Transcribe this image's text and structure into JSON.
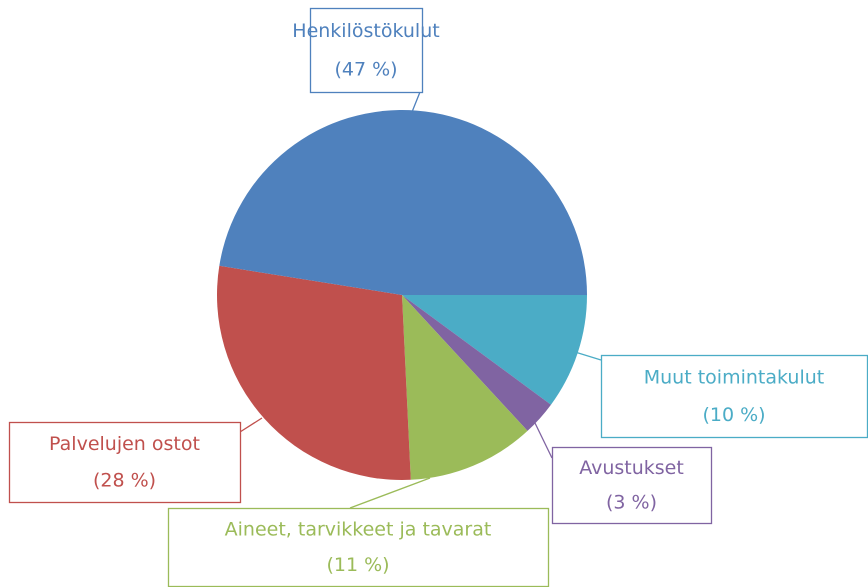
{
  "chart_data": {
    "type": "pie",
    "categories": [
      "Muut toimintakulut",
      "Avustukset",
      "Aineet, tarvikkeet ja tavarat",
      "Palvelujen ostot",
      "Henkilöstökulut"
    ],
    "values": [
      10,
      3,
      11,
      28,
      47
    ],
    "value_labels": [
      "(10 %)",
      "(3 %)",
      "(11 %)",
      "(28 %)",
      "(47 %)"
    ],
    "colors": [
      "#4bacc6",
      "#8064a2",
      "#9bbb59",
      "#c0504d",
      "#4f81bd"
    ]
  }
}
